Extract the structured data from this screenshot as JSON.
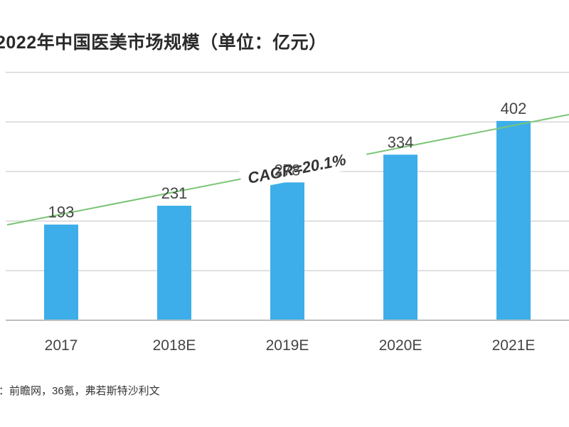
{
  "chart_data": {
    "type": "bar",
    "title": "2022年中国医美市场规模（单位：亿元）",
    "categories": [
      "2017",
      "2018E",
      "2019E",
      "2020E",
      "2021E"
    ],
    "values": [
      193,
      231,
      278,
      334,
      402
    ],
    "ylim": [
      0,
      600
    ],
    "grid": true,
    "bar_color": "#3daee9",
    "trend_color": "#7cc576",
    "annotation": "CAGR=20.1%",
    "source": "：前瞻网，36氪，弗若斯特沙利文"
  }
}
